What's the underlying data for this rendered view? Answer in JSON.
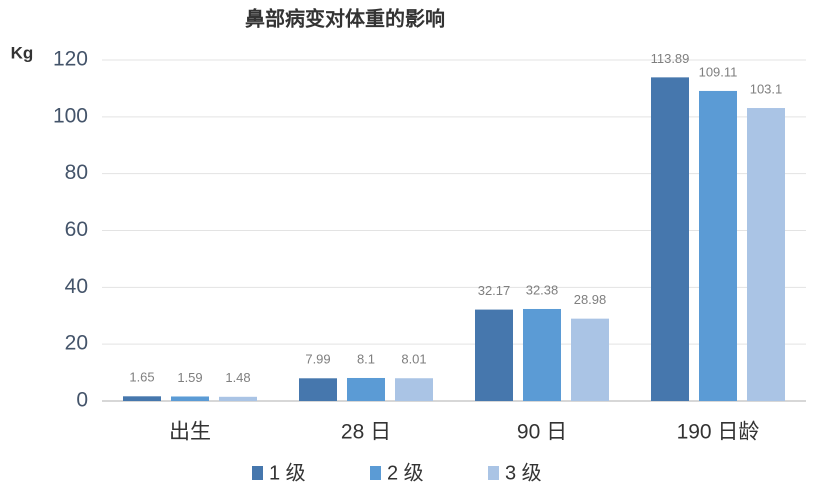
{
  "chart_data": {
    "type": "bar",
    "title": "鼻部病变对体重的影响",
    "y_label": "Kg",
    "categories": [
      "出生",
      "28 日",
      "90 日",
      "190 日龄"
    ],
    "series": [
      {
        "name": "1 级",
        "color": "#4677ad",
        "values": [
          1.65,
          7.99,
          32.17,
          113.89
        ]
      },
      {
        "name": "2 级",
        "color": "#5b9bd5",
        "values": [
          1.59,
          8.1,
          32.38,
          109.11
        ]
      },
      {
        "name": "3 级",
        "color": "#aac4e5",
        "values": [
          1.48,
          8.01,
          28.98,
          103.1
        ]
      }
    ],
    "ylim": [
      0,
      120
    ],
    "yticks": [
      0,
      20,
      40,
      60,
      80,
      100,
      120
    ],
    "grid": true,
    "legend": "bottom"
  }
}
